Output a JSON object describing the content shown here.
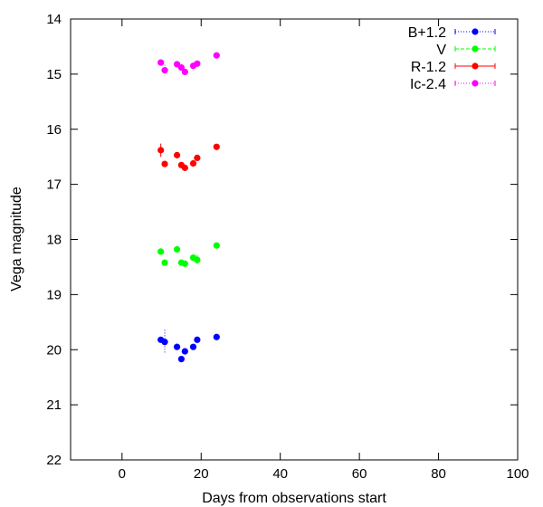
{
  "chart_data": {
    "type": "scatter",
    "xlabel": "Days from observations start",
    "ylabel": "Vega magnitude",
    "xlim": [
      -13,
      100
    ],
    "ylim": [
      14,
      22
    ],
    "y_inverted": true,
    "xticks": [
      0,
      20,
      40,
      60,
      80,
      100
    ],
    "yticks": [
      14,
      15,
      16,
      17,
      18,
      19,
      20,
      21,
      22
    ],
    "grid": false,
    "legend_position": "top-right",
    "series": [
      {
        "name": "B+1.2",
        "color": "#0000ff",
        "line_style": "dotted",
        "points": [
          {
            "x": 9.8,
            "y": 19.82,
            "err": 0.05
          },
          {
            "x": 10.8,
            "y": 19.86,
            "err": 0.22
          },
          {
            "x": 13.9,
            "y": 19.95,
            "err": 0.06
          },
          {
            "x": 15.0,
            "y": 20.17,
            "err": 0.05
          },
          {
            "x": 15.9,
            "y": 20.03,
            "err": 0.05
          },
          {
            "x": 18.0,
            "y": 19.95,
            "err": 0.05
          },
          {
            "x": 19.0,
            "y": 19.82,
            "err": 0.06
          },
          {
            "x": 23.9,
            "y": 19.77,
            "err": 0.04
          }
        ]
      },
      {
        "name": "V",
        "color": "#00ff00",
        "line_style": "dashed",
        "points": [
          {
            "x": 9.8,
            "y": 18.22,
            "err": 0.05
          },
          {
            "x": 10.8,
            "y": 18.42,
            "err": 0.05
          },
          {
            "x": 13.9,
            "y": 18.18,
            "err": 0.04
          },
          {
            "x": 15.0,
            "y": 18.42,
            "err": 0.05
          },
          {
            "x": 15.9,
            "y": 18.44,
            "err": 0.04
          },
          {
            "x": 18.0,
            "y": 18.33,
            "err": 0.05
          },
          {
            "x": 19.0,
            "y": 18.37,
            "err": 0.09
          },
          {
            "x": 23.9,
            "y": 18.11,
            "err": 0.04
          }
        ]
      },
      {
        "name": "R-1.2",
        "color": "#ff0000",
        "line_style": "solid",
        "points": [
          {
            "x": 9.8,
            "y": 16.38,
            "err": 0.12
          },
          {
            "x": 10.8,
            "y": 16.63,
            "err": 0.05
          },
          {
            "x": 13.9,
            "y": 16.47,
            "err": 0.04
          },
          {
            "x": 15.0,
            "y": 16.65,
            "err": 0.05
          },
          {
            "x": 15.9,
            "y": 16.7,
            "err": 0.05
          },
          {
            "x": 18.0,
            "y": 16.62,
            "err": 0.05
          },
          {
            "x": 19.0,
            "y": 16.52,
            "err": 0.05
          },
          {
            "x": 23.9,
            "y": 16.32,
            "err": 0.04
          }
        ]
      },
      {
        "name": "Ic-2.4",
        "color": "#ff00ff",
        "line_style": "dotted",
        "points": [
          {
            "x": 9.8,
            "y": 14.79,
            "err": 0.05
          },
          {
            "x": 10.8,
            "y": 14.93,
            "err": 0.1
          },
          {
            "x": 13.9,
            "y": 14.82,
            "err": 0.04
          },
          {
            "x": 15.0,
            "y": 14.88,
            "err": 0.05
          },
          {
            "x": 15.9,
            "y": 14.96,
            "err": 0.05
          },
          {
            "x": 18.0,
            "y": 14.85,
            "err": 0.05
          },
          {
            "x": 19.0,
            "y": 14.81,
            "err": 0.05
          },
          {
            "x": 23.9,
            "y": 14.66,
            "err": 0.04
          }
        ]
      }
    ]
  }
}
